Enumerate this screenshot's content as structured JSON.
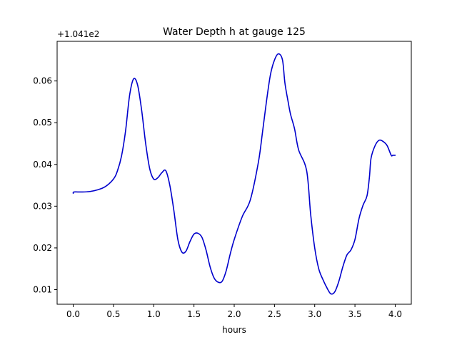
{
  "chart_data": {
    "type": "line",
    "title": "Water Depth h at gauge 125",
    "xlabel": "hours",
    "ylabel": "",
    "offset_text": "+1.041e2",
    "xlim": [
      -0.2,
      4.2
    ],
    "ylim": [
      0.0065,
      0.0695
    ],
    "xticks": [
      0.0,
      0.5,
      1.0,
      1.5,
      2.0,
      2.5,
      3.0,
      3.5,
      4.0
    ],
    "xtick_labels": [
      "0.0",
      "0.5",
      "1.0",
      "1.5",
      "2.0",
      "2.5",
      "3.0",
      "3.5",
      "4.0"
    ],
    "yticks": [
      0.01,
      0.02,
      0.03,
      0.04,
      0.05,
      0.06
    ],
    "ytick_labels": [
      "0.01",
      "0.02",
      "0.03",
      "0.04",
      "0.05",
      "0.06"
    ],
    "grid": false,
    "series": [
      {
        "name": "h",
        "color": "#0000cc",
        "x": [
          0.0,
          0.01,
          0.1,
          0.2,
          0.3,
          0.4,
          0.5,
          0.55,
          0.6,
          0.65,
          0.7,
          0.75,
          0.8,
          0.85,
          0.9,
          0.95,
          1.0,
          1.05,
          1.1,
          1.15,
          1.2,
          1.25,
          1.3,
          1.35,
          1.4,
          1.45,
          1.5,
          1.55,
          1.6,
          1.65,
          1.7,
          1.75,
          1.8,
          1.85,
          1.9,
          1.95,
          2.0,
          2.1,
          2.2,
          2.3,
          2.35,
          2.4,
          2.45,
          2.5,
          2.55,
          2.6,
          2.63,
          2.67,
          2.7,
          2.75,
          2.8,
          2.9,
          2.95,
          3.0,
          3.05,
          3.1,
          3.15,
          3.2,
          3.25,
          3.3,
          3.35,
          3.4,
          3.45,
          3.5,
          3.55,
          3.6,
          3.65,
          3.68,
          3.7,
          3.75,
          3.8,
          3.85,
          3.9,
          3.95,
          3.97,
          4.0
        ],
        "y": [
          0.0331,
          0.0334,
          0.0334,
          0.0335,
          0.0339,
          0.0347,
          0.0365,
          0.0385,
          0.042,
          0.048,
          0.0565,
          0.0605,
          0.059,
          0.053,
          0.045,
          0.039,
          0.0365,
          0.0368,
          0.038,
          0.0385,
          0.035,
          0.029,
          0.022,
          0.019,
          0.0192,
          0.0215,
          0.0233,
          0.0235,
          0.0225,
          0.0195,
          0.0155,
          0.0128,
          0.0118,
          0.012,
          0.0145,
          0.0185,
          0.022,
          0.0275,
          0.0315,
          0.0405,
          0.0475,
          0.055,
          0.0615,
          0.065,
          0.0665,
          0.065,
          0.0595,
          0.055,
          0.052,
          0.0485,
          0.0435,
          0.0385,
          0.028,
          0.02,
          0.015,
          0.0125,
          0.0105,
          0.009,
          0.0095,
          0.012,
          0.0155,
          0.0183,
          0.0195,
          0.022,
          0.027,
          0.0302,
          0.0325,
          0.037,
          0.0415,
          0.0445,
          0.0458,
          0.0455,
          0.0445,
          0.0422,
          0.0422,
          0.0422
        ]
      }
    ]
  }
}
